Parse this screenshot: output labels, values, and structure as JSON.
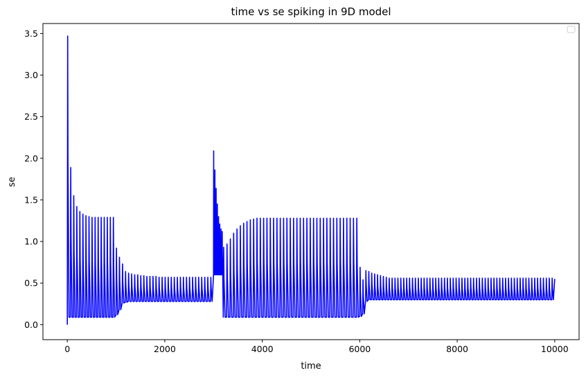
{
  "chart_data": {
    "type": "line",
    "title": "time vs se spiking in 9D model",
    "xlabel": "time",
    "ylabel": "se",
    "xlim": [
      -500,
      10500
    ],
    "ylim": [
      -0.18,
      3.62
    ],
    "xticks": [
      0,
      2000,
      4000,
      6000,
      8000,
      10000
    ],
    "yticks": [
      0.0,
      0.5,
      1.0,
      1.5,
      2.0,
      2.5,
      3.0,
      3.5
    ],
    "xtick_labels": [
      "0",
      "2000",
      "4000",
      "6000",
      "8000",
      "10000"
    ],
    "ytick_labels": [
      "0.0",
      "0.5",
      "1.0",
      "1.5",
      "2.0",
      "2.5",
      "3.0",
      "3.5"
    ],
    "grid": false,
    "legend": {
      "position": "top-right",
      "entries": []
    },
    "series": [
      {
        "color": "#0000ff",
        "segments": [
          {
            "t_start": 0,
            "t_end": 1000,
            "peaks": [
              3.47,
              1.89,
              1.55,
              1.42,
              1.36,
              1.33,
              1.31,
              1.3,
              1.29,
              1.29,
              1.29,
              1.29,
              1.29,
              1.29,
              1.29,
              1.29
            ],
            "trough": 0.09
          },
          {
            "t_start": 1000,
            "t_end": 3000,
            "peaks": [
              0.92,
              0.81,
              0.73,
              0.64,
              0.62,
              0.61,
              0.6,
              0.6,
              0.59,
              0.59,
              0.58,
              0.58,
              0.58,
              0.58,
              0.57,
              0.57,
              0.57,
              0.57,
              0.57,
              0.57,
              0.57,
              0.57,
              0.57,
              0.57,
              0.57,
              0.57,
              0.57,
              0.57,
              0.57,
              0.57,
              0.57,
              0.57
            ],
            "troughs": [
              0.12,
              0.18,
              0.26,
              0.27,
              0.28,
              0.28,
              0.28,
              0.28,
              0.28,
              0.28,
              0.28,
              0.28,
              0.28,
              0.28,
              0.28,
              0.28,
              0.28,
              0.28,
              0.28,
              0.28,
              0.28,
              0.28,
              0.28,
              0.28,
              0.28,
              0.28,
              0.28,
              0.28,
              0.28,
              0.28,
              0.28,
              0.28
            ]
          },
          {
            "t_start": 3000,
            "t_end": 3200,
            "peaks": [
              2.09,
              1.86,
              1.64,
              1.45,
              1.3,
              1.21,
              1.15,
              1.12
            ],
            "trough": 0.6
          },
          {
            "t_start": 3200,
            "t_end": 6000,
            "peaks": [
              0.93,
              0.97,
              1.03,
              1.1,
              1.15,
              1.19,
              1.22,
              1.24,
              1.26,
              1.27,
              1.28,
              1.28,
              1.28,
              1.28,
              1.28,
              1.28,
              1.28,
              1.28,
              1.28,
              1.28,
              1.28,
              1.28,
              1.28,
              1.28,
              1.28,
              1.28,
              1.28,
              1.28,
              1.28,
              1.28,
              1.28,
              1.28,
              1.28,
              1.28,
              1.28,
              1.28,
              1.28,
              1.28,
              1.28,
              1.28,
              1.28
            ],
            "trough": 0.09
          },
          {
            "t_start": 6000,
            "t_end": 10000,
            "peaks": [
              0.69,
              0.54,
              0.65,
              0.64,
              0.62,
              0.61,
              0.6,
              0.59,
              0.58,
              0.57,
              0.56,
              0.56,
              0.56,
              0.56,
              0.56,
              0.56,
              0.56,
              0.56,
              0.56,
              0.56,
              0.56,
              0.56,
              0.56,
              0.56,
              0.56,
              0.56,
              0.56,
              0.56,
              0.56,
              0.56,
              0.56,
              0.56,
              0.56,
              0.56,
              0.56,
              0.56,
              0.56,
              0.56,
              0.56,
              0.56,
              0.56,
              0.56,
              0.56,
              0.56,
              0.56,
              0.56,
              0.56,
              0.56,
              0.56,
              0.56,
              0.56,
              0.56,
              0.56,
              0.56,
              0.56,
              0.56,
              0.56,
              0.56,
              0.56,
              0.56,
              0.56,
              0.56,
              0.56,
              0.56,
              0.56,
              0.56,
              0.56
            ],
            "troughs_start": [
              0.1,
              0.13,
              0.28
            ],
            "trough": 0.3
          }
        ]
      }
    ]
  }
}
